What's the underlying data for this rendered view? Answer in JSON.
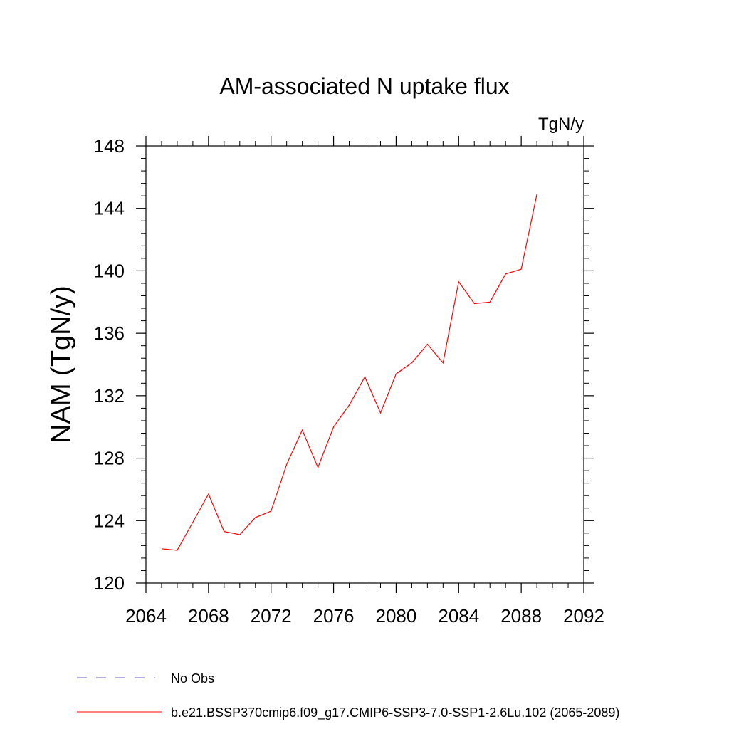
{
  "chart_data": {
    "type": "line",
    "title": "AM-associated N uptake flux",
    "units_label": "TgN/y",
    "ylabel": "NAM  (TgN/y)",
    "xlabel": "",
    "xlim": [
      2064,
      2092
    ],
    "ylim": [
      120,
      148
    ],
    "x_ticks": [
      2064,
      2068,
      2072,
      2076,
      2080,
      2084,
      2088,
      2092
    ],
    "y_ticks": [
      120,
      124,
      128,
      132,
      136,
      140,
      144,
      148
    ],
    "grid": false,
    "legend_position": "bottom-left",
    "series": [
      {
        "name": "b.e21.BSSP370cmip6.f09_g17.CMIP6-SSP3-7.0-SSP1-2.6Lu.102 (2065-2089)",
        "color": "#ff0000",
        "style": "solid",
        "x": [
          2065,
          2066,
          2067,
          2068,
          2069,
          2070,
          2071,
          2072,
          2073,
          2074,
          2075,
          2076,
          2077,
          2078,
          2079,
          2080,
          2081,
          2082,
          2083,
          2084,
          2085,
          2086,
          2087,
          2088,
          2089
        ],
        "values": [
          122.2,
          122.1,
          123.9,
          125.7,
          123.3,
          123.1,
          124.2,
          124.6,
          127.6,
          129.8,
          127.4,
          130.0,
          131.4,
          133.2,
          130.9,
          133.4,
          134.1,
          135.3,
          134.1,
          139.3,
          137.9,
          138.0,
          139.8,
          140.1,
          144.9
        ]
      }
    ],
    "legend": [
      {
        "label": "No Obs",
        "color": "#6a5acd",
        "style": "dashed"
      },
      {
        "label": "b.e21.BSSP370cmip6.f09_g17.CMIP6-SSP3-7.0-SSP1-2.6Lu.102 (2065-2089)",
        "color": "#ff0000",
        "style": "solid"
      }
    ]
  }
}
